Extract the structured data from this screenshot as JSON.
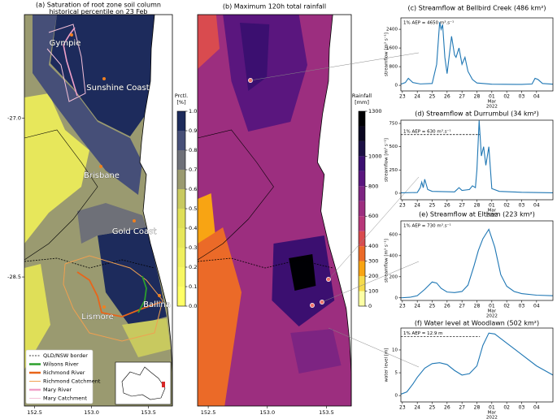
{
  "chart_data": [
    {
      "type": "map",
      "title": "(a) Saturation of root zone soil column",
      "subtitle": "historical percentile on 23 Feb",
      "xlim": [
        152.41,
        153.71
      ],
      "ylim": [
        -29.72,
        -26.02
      ],
      "xticks": [
        152.5,
        {
          "value": 153,
          "label": "153.0"
        },
        153.5
      ],
      "yticks": [
        {
          "value": -27,
          "label": "-27.0"
        },
        -28.5
      ],
      "places": [
        "Gympie",
        "Sunshine Coast",
        "Brisbane",
        "Gold Coast",
        "Lismore",
        "Ballina"
      ],
      "legend": [
        {
          "name": "QLD/NSW border",
          "color": "#000000",
          "style": "dashed"
        },
        {
          "name": "Wilsons River",
          "color": "#2ca02c",
          "style": "solid"
        },
        {
          "name": "Richmond River",
          "color": "#e8651a",
          "style": "solid"
        },
        {
          "name": "Richmond Catchment",
          "color": "#f0a050",
          "style": "thin"
        },
        {
          "name": "Mary River",
          "color": "#f0a0c8",
          "style": "solid"
        },
        {
          "name": "Mary Catchment",
          "color": "#f4c0d8",
          "style": "thin"
        }
      ],
      "colorbar": {
        "label": [
          "Prctl.",
          "[%]"
        ],
        "lim": [
          0,
          1
        ],
        "ticks": [
          {
            "value": 0,
            "label": "0.0"
          },
          0.1,
          0.2,
          0.3,
          0.4,
          0.5,
          0.6,
          0.7,
          0.8,
          0.9,
          {
            "value": 1,
            "label": "1.0"
          }
        ],
        "colors": [
          "#ffff66",
          "#f7f762",
          "#efef5e",
          "#e7e75b",
          "#dfdf58",
          "#c8c95f",
          "#9a9a70",
          "#6e7078",
          "#464f78",
          "#1d2b5c"
        ]
      }
    },
    {
      "type": "map",
      "title": "(b) Maximum 120h total rainfall",
      "xlim": [
        152.41,
        153.71
      ],
      "ylim": [
        -29.72,
        -26.02
      ],
      "xticks": [
        152.5,
        {
          "value": 153,
          "label": "153.0"
        },
        153.5
      ],
      "colorbar": {
        "label": [
          "Rainfall",
          "[mm]"
        ],
        "lim": [
          0,
          1300
        ],
        "ticks": [
          0,
          100,
          200,
          300,
          400,
          600,
          800,
          1000,
          1300
        ],
        "colors": [
          "#fcffa4",
          "#f5db4c",
          "#f8a413",
          "#eb6a28",
          "#d94b4f",
          "#b73779",
          "#9c2e7f",
          "#7d2482",
          "#5a167e",
          "#3b0f70",
          "#1c1044",
          "#0a0620",
          "#000004"
        ]
      }
    },
    {
      "type": "line",
      "title": "(c) Streamflow at Bellbird Creek (486 km²)",
      "ylabel": "streamflow [m³ s⁻¹]",
      "annotation": "1% AEP = 4650 m³.s⁻¹",
      "color": "#1f77b4",
      "xlim": [
        22.9,
        33.1
      ],
      "ylim": [
        -240,
        2890
      ],
      "yticks": [
        0,
        800,
        1600,
        2400
      ],
      "xticks": [
        23,
        24,
        25,
        26,
        27,
        28,
        {
          "value": 29,
          "label": "01"
        },
        {
          "value": 30,
          "label": "02"
        },
        {
          "value": 31,
          "label": "03"
        },
        {
          "value": 32,
          "label": "04"
        }
      ],
      "xtick_sublabels": [
        "Mar",
        "2022"
      ],
      "x": [
        22.9,
        23.2,
        23.4,
        23.7,
        24.2,
        25.0,
        25.3,
        25.5,
        25.6,
        25.7,
        25.85,
        26.0,
        26.3,
        26.5,
        26.6,
        26.8,
        27.0,
        27.2,
        27.4,
        27.7,
        28.0,
        29.0,
        31.0,
        31.7,
        31.9,
        32.1,
        32.4,
        33.1
      ],
      "values": [
        50,
        120,
        300,
        120,
        60,
        80,
        900,
        2700,
        2400,
        2600,
        1200,
        500,
        2100,
        1300,
        1200,
        1600,
        900,
        1200,
        600,
        250,
        100,
        50,
        40,
        60,
        300,
        250,
        80,
        50
      ]
    },
    {
      "type": "line",
      "title": "(d) Streamflow at Durrumbul (34 km²)",
      "ylabel": "streamflow [m³ s⁻¹]",
      "annotation": "1% AEP = 630 m³.s⁻¹",
      "aep_line": 630,
      "color": "#1f77b4",
      "xlim": [
        22.9,
        33.1
      ],
      "ylim": [
        -70,
        785
      ],
      "yticks": [
        0,
        250,
        500,
        750
      ],
      "xticks": [
        23,
        24,
        25,
        26,
        27,
        28,
        {
          "value": 29,
          "label": "01"
        },
        {
          "value": 30,
          "label": "02"
        },
        {
          "value": 31,
          "label": "03"
        },
        {
          "value": 32,
          "label": "04"
        }
      ],
      "xtick_sublabels": [
        "Mar",
        "2022"
      ],
      "x": [
        22.9,
        24.0,
        24.2,
        24.3,
        24.4,
        24.5,
        24.7,
        25.0,
        26.5,
        26.8,
        27.0,
        27.5,
        27.7,
        27.9,
        28.0,
        28.15,
        28.3,
        28.45,
        28.6,
        28.8,
        29.0,
        29.5,
        31.0,
        33.1
      ],
      "values": [
        5,
        8,
        60,
        120,
        60,
        150,
        40,
        20,
        15,
        60,
        30,
        40,
        80,
        60,
        250,
        780,
        400,
        500,
        300,
        500,
        50,
        20,
        10,
        5
      ]
    },
    {
      "type": "line",
      "title": "(e) Streamflow at Eltham (223 km²)",
      "ylabel": "streamflow [m³ s⁻¹]",
      "annotation": "1% AEP = 730 m³.s⁻¹",
      "color": "#1f77b4",
      "xlim": [
        22.9,
        33.1
      ],
      "ylim": [
        -25,
        730
      ],
      "yticks": [
        0,
        200,
        400,
        600
      ],
      "xticks": [
        23,
        24,
        25,
        26,
        27,
        28,
        {
          "value": 29,
          "label": "01"
        },
        {
          "value": 30,
          "label": "02"
        },
        {
          "value": 31,
          "label": "03"
        },
        {
          "value": 32,
          "label": "04"
        }
      ],
      "xtick_sublabels": [
        "Mar",
        "2022"
      ],
      "x": [
        22.9,
        23.5,
        24.0,
        24.5,
        25.0,
        25.3,
        25.6,
        26.0,
        26.5,
        27.0,
        27.4,
        27.8,
        28.1,
        28.4,
        28.8,
        29.2,
        29.6,
        30.0,
        30.5,
        31.0,
        32.0,
        33.1
      ],
      "values": [
        0,
        5,
        20,
        80,
        150,
        140,
        90,
        55,
        50,
        60,
        120,
        300,
        450,
        560,
        650,
        480,
        220,
        110,
        60,
        40,
        25,
        20
      ]
    },
    {
      "type": "line",
      "title": "(f) Water level at Woodlawn (502 km²)",
      "ylabel": "water level [m]",
      "annotation": "1% AEP = 12.9 m",
      "aep_line": 12.9,
      "color": "#1f77b4",
      "xlim": [
        22.9,
        33.1
      ],
      "ylim": [
        -1.4,
        14.8
      ],
      "yticks": [
        0,
        5,
        10
      ],
      "xticks": [
        23,
        24,
        25,
        26,
        27,
        28,
        {
          "value": 29,
          "label": "01"
        },
        {
          "value": 30,
          "label": "02"
        },
        {
          "value": 31,
          "label": "03"
        },
        {
          "value": 32,
          "label": "04"
        }
      ],
      "xtick_sublabels": [
        "Mar",
        "2022"
      ],
      "x": [
        22.9,
        23.3,
        23.7,
        24.0,
        24.5,
        25.0,
        25.5,
        26.0,
        26.5,
        27.0,
        27.5,
        28.0,
        28.4,
        28.8,
        29.2,
        29.6,
        30.0,
        31.0,
        32.0,
        33.1
      ],
      "values": [
        0.3,
        0.8,
        2.5,
        4,
        6,
        7,
        7.2,
        6.8,
        5.5,
        4.5,
        4.8,
        6.5,
        11,
        13.7,
        13.5,
        12.5,
        11.5,
        9,
        6.5,
        4.5
      ]
    }
  ]
}
